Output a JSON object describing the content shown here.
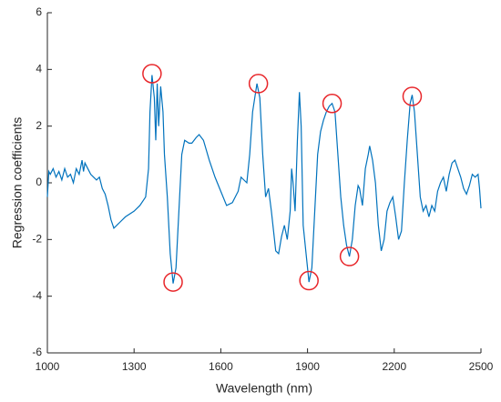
{
  "chart_data": {
    "type": "line",
    "x_label": "Wavelength (nm)",
    "y_label": "Regression coefficients",
    "color": "#0072bd",
    "x": [
      1000,
      1005,
      1010,
      1020,
      1030,
      1040,
      1050,
      1060,
      1070,
      1080,
      1090,
      1100,
      1110,
      1120,
      1125,
      1130,
      1140,
      1150,
      1160,
      1170,
      1180,
      1190,
      1200,
      1210,
      1220,
      1230,
      1250,
      1270,
      1300,
      1320,
      1340,
      1350,
      1355,
      1362,
      1370,
      1375,
      1380,
      1385,
      1392,
      1400,
      1405,
      1415,
      1425,
      1435,
      1445,
      1455,
      1465,
      1475,
      1490,
      1500,
      1515,
      1525,
      1540,
      1560,
      1580,
      1600,
      1620,
      1640,
      1660,
      1670,
      1680,
      1690,
      1700,
      1710,
      1725,
      1735,
      1745,
      1755,
      1765,
      1775,
      1790,
      1800,
      1810,
      1820,
      1830,
      1840,
      1845,
      1850,
      1857,
      1865,
      1872,
      1878,
      1885,
      1895,
      1905,
      1915,
      1925,
      1935,
      1945,
      1955,
      1965,
      1975,
      1985,
      1995,
      2005,
      2015,
      2025,
      2035,
      2045,
      2055,
      2065,
      2075,
      2080,
      2090,
      2100,
      2110,
      2115,
      2125,
      2135,
      2145,
      2155,
      2165,
      2175,
      2185,
      2195,
      2205,
      2215,
      2225,
      2235,
      2245,
      2255,
      2262,
      2270,
      2280,
      2290,
      2300,
      2310,
      2320,
      2330,
      2340,
      2350,
      2360,
      2370,
      2380,
      2390,
      2400,
      2410,
      2420,
      2430,
      2440,
      2450,
      2460,
      2470,
      2480,
      2490,
      2495,
      2500
    ],
    "values": [
      -0.5,
      0.4,
      0.3,
      0.5,
      0.2,
      0.4,
      0.1,
      0.5,
      0.2,
      0.3,
      0.0,
      0.5,
      0.3,
      0.8,
      0.4,
      0.7,
      0.5,
      0.3,
      0.2,
      0.1,
      0.2,
      -0.2,
      -0.4,
      -0.8,
      -1.3,
      -1.6,
      -1.4,
      -1.2,
      -1.0,
      -0.8,
      -0.5,
      0.5,
      2.5,
      3.8,
      3.0,
      1.5,
      3.5,
      2.0,
      3.4,
      2.5,
      1.0,
      -0.5,
      -2.5,
      -3.55,
      -3.0,
      -1.0,
      1.0,
      1.5,
      1.4,
      1.4,
      1.6,
      1.7,
      1.5,
      0.8,
      0.2,
      -0.3,
      -0.8,
      -0.7,
      -0.3,
      0.2,
      0.1,
      0.0,
      1.0,
      2.5,
      3.5,
      3.0,
      1.0,
      -0.5,
      -0.2,
      -1.0,
      -2.4,
      -2.5,
      -1.9,
      -1.5,
      -2.0,
      -1.0,
      0.5,
      0.0,
      -1.0,
      1.5,
      3.2,
      2.0,
      -1.5,
      -2.5,
      -3.5,
      -3.0,
      -1.0,
      1.0,
      1.8,
      2.2,
      2.5,
      2.7,
      2.8,
      2.5,
      1.0,
      -0.5,
      -1.5,
      -2.2,
      -2.6,
      -2.0,
      -0.8,
      -0.1,
      -0.2,
      -0.8,
      0.5,
      1.0,
      1.3,
      0.8,
      0.0,
      -1.5,
      -2.4,
      -2.0,
      -1.0,
      -0.7,
      -0.5,
      -1.2,
      -2.0,
      -1.7,
      0.0,
      1.5,
      2.8,
      3.1,
      2.5,
      1.0,
      -0.5,
      -1.0,
      -0.8,
      -1.2,
      -0.8,
      -1.0,
      -0.3,
      0.0,
      0.2,
      -0.3,
      0.3,
      0.7,
      0.8,
      0.5,
      0.2,
      -0.2,
      -0.4,
      -0.1,
      0.3,
      0.2,
      0.3,
      -0.2,
      -0.9
    ],
    "highlights": {
      "color": "#e8262a",
      "x": [
        1362,
        1435,
        1730,
        1905,
        1985,
        2045,
        2262
      ],
      "y": [
        3.85,
        -3.5,
        3.5,
        -3.45,
        2.8,
        -2.6,
        3.05
      ]
    },
    "xlim": [
      1000,
      2500
    ],
    "xticks": [
      1000,
      1300,
      1600,
      1900,
      2200,
      2500
    ],
    "ylim": [
      -6,
      6
    ],
    "yticks": [
      -6,
      -4,
      -2,
      0,
      2,
      4,
      6
    ]
  }
}
